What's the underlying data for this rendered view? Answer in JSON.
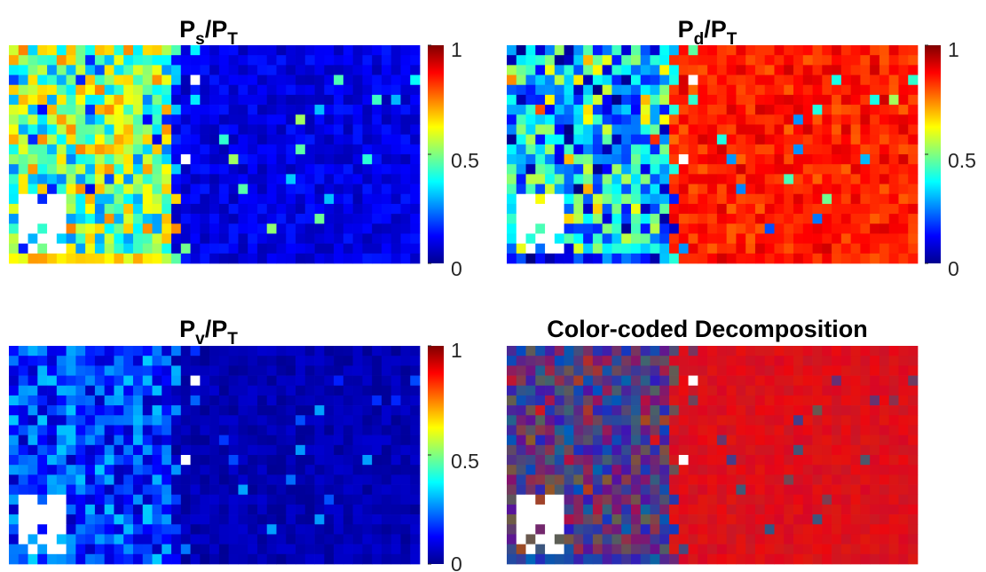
{
  "figure": {
    "panels": [
      {
        "id": "ps",
        "title_main": "P",
        "title_sub1": "s",
        "title_sep": "/P",
        "title_sub2": "T"
      },
      {
        "id": "pd",
        "title_main": "P",
        "title_sub1": "d",
        "title_sep": "/P",
        "title_sub2": "T"
      },
      {
        "id": "pv",
        "title_main": "P",
        "title_sub1": "v",
        "title_sep": "/P",
        "title_sub2": "T"
      },
      {
        "id": "rgb",
        "title": "Color-coded Decomposition"
      }
    ],
    "colorbar_ticks": [
      "0",
      "0.5",
      "1"
    ]
  },
  "chart_data": [
    {
      "type": "heatmap",
      "title": "Ps/PT",
      "colormap": "jet",
      "clim": [
        0,
        1
      ],
      "grid_cols": 43,
      "grid_rows": 22,
      "description_regions": [
        {
          "region": "left ~40% of columns",
          "value_range": [
            0.3,
            0.8
          ]
        },
        {
          "region": "right ~60% of columns",
          "value_range": [
            0.05,
            0.15
          ]
        },
        {
          "region": "lower-left blob",
          "value": null
        }
      ]
    },
    {
      "type": "heatmap",
      "title": "Pd/PT",
      "colormap": "jet",
      "clim": [
        0,
        1
      ],
      "grid_cols": 43,
      "grid_rows": 22,
      "description_regions": [
        {
          "region": "left ~40% of columns",
          "value_range": [
            0.2,
            0.8
          ]
        },
        {
          "region": "right ~60% of columns",
          "value_range": [
            0.8,
            0.95
          ]
        },
        {
          "region": "lower-left blob",
          "value": null
        }
      ]
    },
    {
      "type": "heatmap",
      "title": "Pv/PT",
      "colormap": "jet",
      "clim": [
        0,
        1
      ],
      "grid_cols": 43,
      "grid_rows": 22,
      "description_regions": [
        {
          "region": "left ~40% of columns",
          "value_range": [
            0.05,
            0.35
          ]
        },
        {
          "region": "right ~60% of columns",
          "value_range": [
            0.02,
            0.08
          ]
        },
        {
          "region": "lower-left blob",
          "value": null
        }
      ]
    },
    {
      "type": "heatmap",
      "title": "Color-coded Decomposition",
      "colormap": "rgb composite (R=Pd, G=Pv, B=Ps)",
      "grid_cols": 43,
      "grid_rows": 22
    }
  ],
  "colors": {
    "missing": "#ffffff"
  }
}
